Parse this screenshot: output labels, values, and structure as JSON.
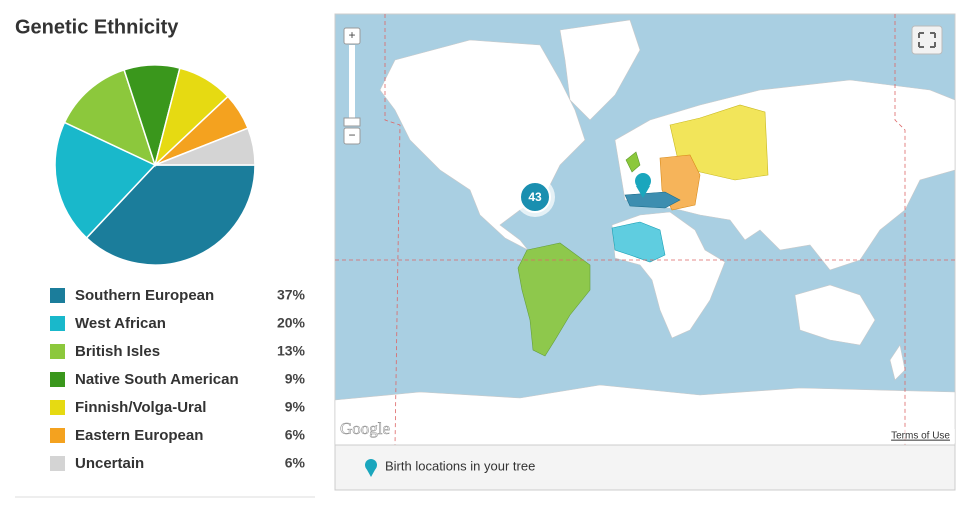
{
  "chart_data": {
    "type": "pie",
    "title": "Genetic Ethnicity",
    "categories": [
      "Southern European",
      "West African",
      "British Isles",
      "Native South American",
      "Finnish/Volga-Ural",
      "Eastern European",
      "Uncertain"
    ],
    "values": [
      37,
      20,
      13,
      9,
      9,
      6,
      6
    ],
    "value_labels": [
      "37%",
      "20%",
      "13%",
      "9%",
      "9%",
      "6%",
      "6%"
    ],
    "colors": [
      "#1b7d9b",
      "#19b8cb",
      "#8cc83c",
      "#3a971c",
      "#e6da12",
      "#f4a21f",
      "#d4d4d4"
    ]
  },
  "map": {
    "cluster_count": 43,
    "attribution": "Google",
    "terms": "Terms of Use",
    "legend": "Birth locations in your tree",
    "zoom_in": "+",
    "zoom_out": "−"
  }
}
